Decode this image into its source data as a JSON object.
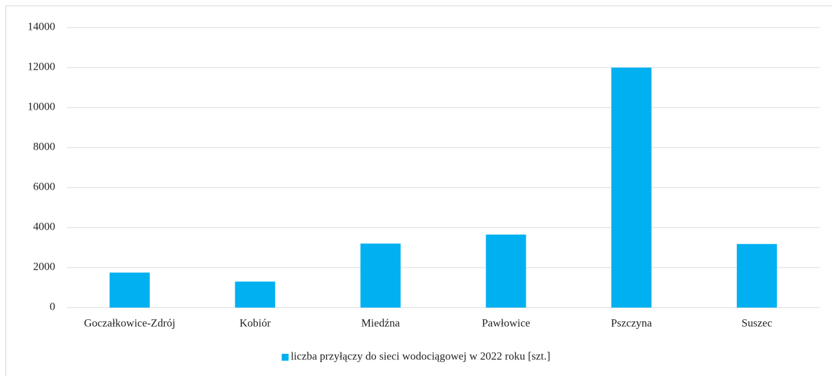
{
  "chart_data": {
    "type": "bar",
    "categories": [
      "Goczałkowice-Zdrój",
      "Kobiór",
      "Miedźna",
      "Pawłowice",
      "Pszczyna",
      "Suszec"
    ],
    "series": [
      {
        "name": "liczba przyłączy do sieci wodociągowej w 2022 roku [szt.]",
        "color": "#00b0f0",
        "values": [
          1750,
          1300,
          3200,
          3650,
          12000,
          3180
        ]
      }
    ],
    "ylim": [
      0,
      14000
    ],
    "yticks": [
      0,
      2000,
      4000,
      6000,
      8000,
      10000,
      12000,
      14000
    ],
    "grid": true,
    "legend": "bottom"
  }
}
